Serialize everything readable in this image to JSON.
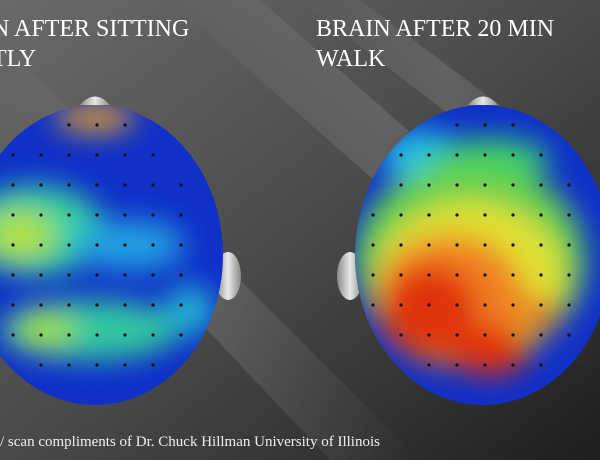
{
  "left_title": {
    "line1": "N AFTER SITTING",
    "line2": "TLY"
  },
  "right_title": {
    "line1": "BRAIN AFTER 20 MIN",
    "line2": "WALK"
  },
  "caption": "/ scan compliments of Dr. Chuck Hillman University of Illinois"
}
